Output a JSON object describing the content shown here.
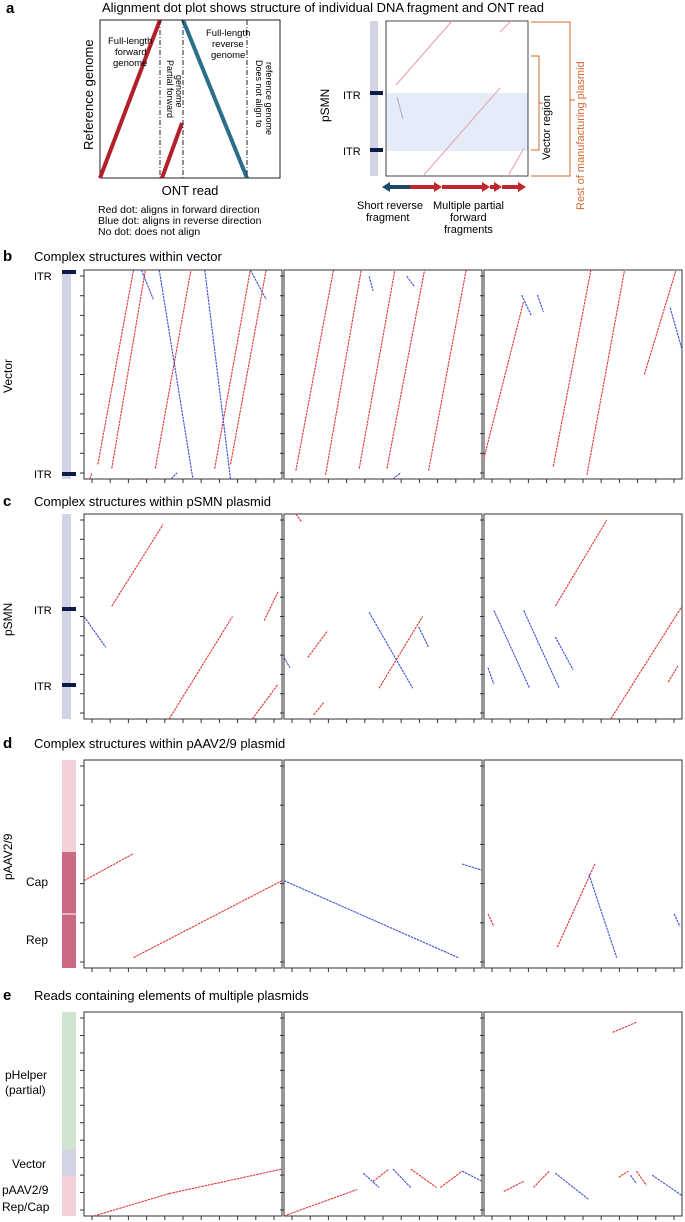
{
  "panels": {
    "a": {
      "letter": "a",
      "title": "Alignment dot plot shows structure of individual DNA fragment and ONT read",
      "schematic": {
        "ylabel": "Reference genome",
        "xlabel": "ONT read",
        "label_forward": [
          "Full-length",
          "forward",
          "genome"
        ],
        "label_partial": [
          "Partial forward",
          "genome"
        ],
        "label_reverse": [
          "Full-length",
          "reverse",
          "genome"
        ],
        "label_noalign": [
          "Does not align to",
          "reference genome"
        ],
        "legend": [
          "Red dot: aligns in forward direction",
          "Blue dot: aligns in reverse direction",
          "No dot: does not align"
        ]
      },
      "example": {
        "ylabel": "pSMN",
        "itr_top": "ITR",
        "itr_bottom": "ITR",
        "vector_region": "Vector region",
        "rest": "Rest of manufacturing plasmid",
        "short_reverse": [
          "Short reverse",
          "fragment"
        ],
        "multiple_forward": [
          "Multiple partial",
          "forward",
          "fragments"
        ]
      }
    },
    "b": {
      "letter": "b",
      "title": "Complex structures within vector",
      "ylabel": "Vector",
      "itr_top": "ITR",
      "itr_bottom": "ITR"
    },
    "c": {
      "letter": "c",
      "title": "Complex structures within pSMN plasmid",
      "ylabel": "pSMN",
      "itr_top": "ITR",
      "itr_bottom": "ITR"
    },
    "d": {
      "letter": "d",
      "title": "Complex structures within pAAV2/9 plasmid",
      "ylabel": "pAAV2/9",
      "cap": "Cap",
      "rep": "Rep"
    },
    "e": {
      "letter": "e",
      "title": "Reads containing elements of multiple plasmids",
      "phelper": [
        "pHelper",
        "(partial)"
      ],
      "vector": "Vector",
      "paav": [
        "pAAV2/9",
        "Rep/Cap"
      ]
    }
  },
  "colors": {
    "forward": "#c0262c",
    "reverse": "#2a6e8a",
    "dot_red": "#e03535",
    "dot_blue": "#3a4fd6",
    "vector_bar": "#d3d3e6",
    "itr": "#0b1a4a",
    "pink_light": "#f4d0d8",
    "pink_dark": "#cc6a84",
    "green": "#cfe5cf",
    "orange": "#d2692e",
    "vector_fill": "#e3ecf8"
  },
  "chart_data": [
    {
      "type": "scatter",
      "panel": "b",
      "plot": 1,
      "ylabel": "Vector",
      "xlim": [
        0,
        1
      ],
      "ylim": [
        0,
        1
      ],
      "series": [
        {
          "color": "red",
          "segments": [
            [
              0.03,
              0.0,
              0.04,
              0.03
            ],
            [
              0.07,
              0.07,
              0.25,
              1.0
            ],
            [
              0.14,
              0.05,
              0.31,
              1.0
            ],
            [
              0.36,
              0.05,
              0.54,
              1.0
            ],
            [
              0.66,
              0.05,
              0.84,
              1.0
            ],
            [
              0.74,
              0.07,
              0.92,
              1.0
            ]
          ]
        },
        {
          "color": "blue",
          "segments": [
            [
              0.38,
              1.0,
              0.55,
              0.0
            ],
            [
              0.61,
              1.0,
              0.74,
              0.0
            ],
            [
              0.29,
              1.0,
              0.35,
              0.86
            ],
            [
              0.84,
              1.0,
              0.92,
              0.86
            ],
            [
              0.44,
              0.0,
              0.47,
              0.03
            ]
          ]
        }
      ]
    },
    {
      "type": "scatter",
      "panel": "b",
      "plot": 2,
      "xlim": [
        0,
        1
      ],
      "ylim": [
        0,
        1
      ],
      "series": [
        {
          "color": "red",
          "segments": [
            [
              0.06,
              0.04,
              0.25,
              1.0
            ],
            [
              0.21,
              0.02,
              0.39,
              1.0
            ],
            [
              0.38,
              0.05,
              0.56,
              1.0
            ],
            [
              0.52,
              0.05,
              0.71,
              1.0
            ],
            [
              0.73,
              0.04,
              0.92,
              1.0
            ]
          ]
        },
        {
          "color": "blue",
          "segments": [
            [
              0.62,
              0.97,
              0.66,
              0.92
            ],
            [
              0.43,
              0.97,
              0.45,
              0.9
            ],
            [
              0.55,
              0.0,
              0.59,
              0.03
            ]
          ]
        }
      ]
    },
    {
      "type": "scatter",
      "panel": "b",
      "plot": 3,
      "xlim": [
        0,
        1
      ],
      "ylim": [
        0,
        1
      ],
      "series": [
        {
          "color": "red",
          "segments": [
            [
              0.0,
              0.1,
              0.2,
              0.85
            ],
            [
              0.35,
              0.06,
              0.54,
              1.0
            ],
            [
              0.52,
              0.02,
              0.71,
              1.0
            ],
            [
              0.81,
              0.5,
              0.97,
              1.0
            ]
          ]
        },
        {
          "color": "blue",
          "segments": [
            [
              0.19,
              0.88,
              0.24,
              0.78
            ],
            [
              0.27,
              0.88,
              0.3,
              0.8
            ],
            [
              0.94,
              0.82,
              1.0,
              0.62
            ]
          ]
        }
      ]
    },
    {
      "type": "scatter",
      "panel": "c",
      "plot": 1,
      "ylabel": "pSMN",
      "xlim": [
        0,
        1
      ],
      "ylim": [
        0,
        1
      ],
      "series": [
        {
          "color": "red",
          "segments": [
            [
              0.14,
              0.55,
              0.4,
              0.95
            ],
            [
              0.43,
              0.0,
              0.75,
              0.5
            ],
            [
              0.85,
              0.0,
              0.98,
              0.17
            ],
            [
              0.91,
              0.48,
              0.98,
              0.62
            ]
          ]
        },
        {
          "color": "blue",
          "segments": [
            [
              0.0,
              0.5,
              0.11,
              0.35
            ]
          ]
        }
      ]
    },
    {
      "type": "scatter",
      "panel": "c",
      "plot": 2,
      "xlim": [
        0,
        1
      ],
      "ylim": [
        0,
        1
      ],
      "series": [
        {
          "color": "red",
          "segments": [
            [
              0.06,
              1.0,
              0.09,
              0.96
            ],
            [
              0.48,
              0.15,
              0.7,
              0.5
            ],
            [
              0.12,
              0.3,
              0.22,
              0.43
            ],
            [
              0.15,
              0.02,
              0.2,
              0.08
            ]
          ]
        },
        {
          "color": "blue",
          "segments": [
            [
              0.43,
              0.52,
              0.65,
              0.15
            ],
            [
              0.68,
              0.45,
              0.73,
              0.35
            ],
            [
              0.0,
              0.3,
              0.03,
              0.25
            ]
          ]
        }
      ]
    },
    {
      "type": "scatter",
      "panel": "c",
      "plot": 3,
      "xlim": [
        0,
        1
      ],
      "ylim": [
        0,
        1
      ],
      "series": [
        {
          "color": "red",
          "segments": [
            [
              0.36,
              0.55,
              0.62,
              0.97
            ],
            [
              0.64,
              0.0,
              1.0,
              0.55
            ],
            [
              0.93,
              0.18,
              0.98,
              0.26
            ]
          ]
        },
        {
          "color": "blue",
          "segments": [
            [
              0.05,
              0.53,
              0.23,
              0.15
            ],
            [
              0.2,
              0.53,
              0.38,
              0.15
            ],
            [
              0.36,
              0.4,
              0.45,
              0.24
            ],
            [
              0.02,
              0.25,
              0.05,
              0.17
            ]
          ]
        }
      ]
    },
    {
      "type": "scatter",
      "panel": "d",
      "plot": 1,
      "ylabel": "pAAV2/9",
      "xlim": [
        0,
        1
      ],
      "ylim": [
        0,
        1
      ],
      "series": [
        {
          "color": "red",
          "segments": [
            [
              0.0,
              0.42,
              0.25,
              0.55
            ],
            [
              0.25,
              0.05,
              1.0,
              0.42
            ]
          ]
        }
      ]
    },
    {
      "type": "scatter",
      "panel": "d",
      "plot": 2,
      "xlim": [
        0,
        1
      ],
      "ylim": [
        0,
        1
      ],
      "series": [
        {
          "color": "blue",
          "segments": [
            [
              0.0,
              0.42,
              0.88,
              0.05
            ],
            [
              0.9,
              0.5,
              1.0,
              0.47
            ]
          ]
        }
      ]
    },
    {
      "type": "scatter",
      "panel": "d",
      "plot": 3,
      "xlim": [
        0,
        1
      ],
      "ylim": [
        0,
        1
      ],
      "series": [
        {
          "color": "red",
          "segments": [
            [
              0.37,
              0.1,
              0.56,
              0.5
            ],
            [
              0.02,
              0.26,
              0.05,
              0.2
            ]
          ]
        },
        {
          "color": "blue",
          "segments": [
            [
              0.53,
              0.45,
              0.67,
              0.05
            ],
            [
              0.96,
              0.26,
              0.99,
              0.2
            ]
          ]
        }
      ]
    },
    {
      "type": "scatter",
      "panel": "e",
      "plot": 1,
      "xlim": [
        0,
        1
      ],
      "ylim": [
        0,
        1
      ],
      "series": [
        {
          "color": "red",
          "segments": [
            [
              0.05,
              0.0,
              0.43,
              0.11
            ],
            [
              0.43,
              0.11,
              1.0,
              0.23
            ]
          ]
        }
      ]
    },
    {
      "type": "scatter",
      "panel": "e",
      "plot": 2,
      "xlim": [
        0,
        1
      ],
      "ylim": [
        0,
        1
      ],
      "series": [
        {
          "color": "red",
          "segments": [
            [
              0.0,
              0.0,
              0.37,
              0.13
            ],
            [
              0.45,
              0.17,
              0.53,
              0.23
            ],
            [
              0.64,
              0.23,
              0.77,
              0.14
            ],
            [
              0.79,
              0.14,
              0.9,
              0.22
            ]
          ]
        },
        {
          "color": "blue",
          "segments": [
            [
              0.4,
              0.21,
              0.48,
              0.14
            ],
            [
              0.55,
              0.23,
              0.64,
              0.14
            ],
            [
              0.9,
              0.22,
              1.0,
              0.17
            ]
          ]
        }
      ]
    },
    {
      "type": "scatter",
      "panel": "e",
      "plot": 3,
      "xlim": [
        0,
        1
      ],
      "ylim": [
        0,
        1
      ],
      "series": [
        {
          "color": "red",
          "segments": [
            [
              0.1,
              0.12,
              0.2,
              0.17
            ],
            [
              0.25,
              0.14,
              0.33,
              0.22
            ],
            [
              0.65,
              0.9,
              0.77,
              0.95
            ],
            [
              0.68,
              0.19,
              0.73,
              0.22
            ],
            [
              0.77,
              0.22,
              0.82,
              0.15
            ]
          ]
        },
        {
          "color": "blue",
          "segments": [
            [
              0.36,
              0.21,
              0.53,
              0.08
            ],
            [
              0.85,
              0.2,
              1.0,
              0.1
            ],
            [
              0.74,
              0.2,
              0.77,
              0.16
            ]
          ]
        }
      ]
    }
  ]
}
